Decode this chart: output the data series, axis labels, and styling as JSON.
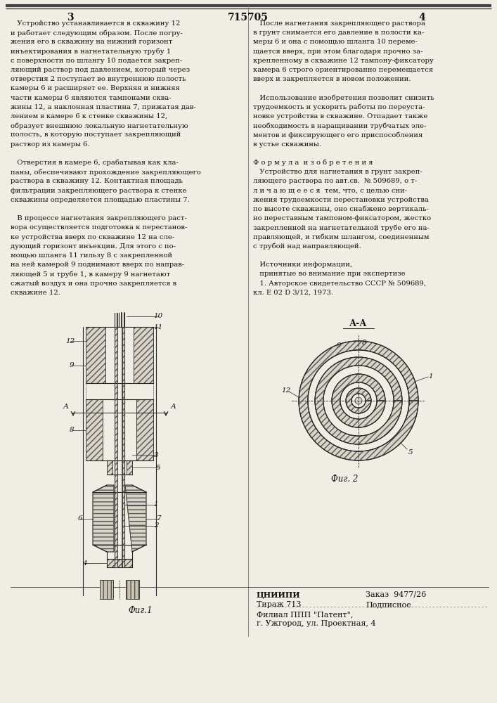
{
  "page_bg": "#f0ede4",
  "text_color": "#111111",
  "title_center": "715705",
  "page_left": "3",
  "page_right": "4",
  "col1_lines": [
    "   Устройство устанавливается в скважину 12",
    "и работает следующим образом. После погру-",
    "жения его в скважину на нижний горизонт",
    "инъектирования в нагнетательную трубу 1",
    "с поверхности по шлангу 10 подается закреп-",
    "ляющий раствор под давлением, который через",
    "отверстия 2 поступает во внутреннюю полость",
    "камеры 6 и расширяет ее. Верхняя и нижняя",
    "части камеры 6 являются тампонами сква-",
    "жины 12, а наклонная пластина 7, прижатая дав-",
    "лением в камере 6 к стенке скважины 12,",
    "образует внешнюю локальную нагнетательную",
    "полость, в которую поступает закрепляющий",
    "раствор из камеры 6.",
    "",
    "   Отверстия в камере 6, срабатывая как кла-",
    "паны, обеспечивают прохождение закрепляющего",
    "раствора в скважину 12. Контактная площадь",
    "фильтрации закрепляющего раствора к стенке",
    "скважины определяется площадью пластины 7.",
    "",
    "   В процессе нагнетания закрепляющего раст-",
    "вора осуществляется подготовка к перестанов-",
    "ке устройства вверх по скважине 12 на сле-",
    "дующий горизонт инъекции. Для этого с по-",
    "мощью шланга 11 гильзу 8 с закрепленной",
    "на ней камерой 9 поднимают вверх по направ-",
    "ляющей 5 и трубе 1, в камеру 9 нагнетают",
    "сжатый воздух и она прочно закрепляется в",
    "скважине 12."
  ],
  "col2_lines": [
    "   После нагнетания закрепляющего раствора",
    "в грунт снимается его давление в полости ка-",
    "меры 6 и она с помощью шланга 10 переме-",
    "щается вверх, при этом благодаря прочно за-",
    "крепленному в скважине 12 тампону-фиксатору",
    "камера 6 строго ориентированно перемещается",
    "вверх и закрепляется в новом положении.",
    "",
    "   Использование изобретения позволит снизить",
    "трудоемкость и ускорить работы по переуста-",
    "новке устройства в скважине. Отпадает также",
    "необходимость в наращивании трубчатых эле-",
    "ментов и фиксирующего его приспособления",
    "в устье скважины.",
    "",
    "Ф о р м у л а  и з о б р е т е н и я",
    "   Устройство для нагнетания в грунт закреп-",
    "ляющего раствора по авт.св.  № 509689, о т-",
    "л и ч а ю щ е е с я  тем, что, с целью сни-",
    "жения трудоемкости перестановки устройства",
    "по высоте скважины, оно снабжено вертикаль-",
    "но переставным тампоном-фиксатором, жестко",
    "закрепленной на нагнетательной трубе его на-",
    "правляющей, и гибким шлангом, соединенным",
    "с трубой над направляющей.",
    "",
    "   Источники информации,",
    "   принятые во внимание при экспертизе",
    "   1. Авторское свидетельство СССР № 509689,",
    "кл. Е 02 D 3/12, 1973."
  ],
  "fig1_label": "Фиг.1",
  "fig2_label": "Фиг. 2",
  "aa_label": "А-А",
  "footer_org": "ЦНИИПИ",
  "footer_order_label": "Заказ",
  "footer_order_num": "9477/26",
  "footer_tirazh_label": "Тираж 713",
  "footer_podp": "Подписное",
  "footer_filial": "Филиал ППП \"Патент\",",
  "footer_addr": "г. Ужгород, ул. Проектная, 4",
  "hatch_color": "#555555",
  "line_color": "#222222",
  "hatch_fill": "#d8d4c8"
}
